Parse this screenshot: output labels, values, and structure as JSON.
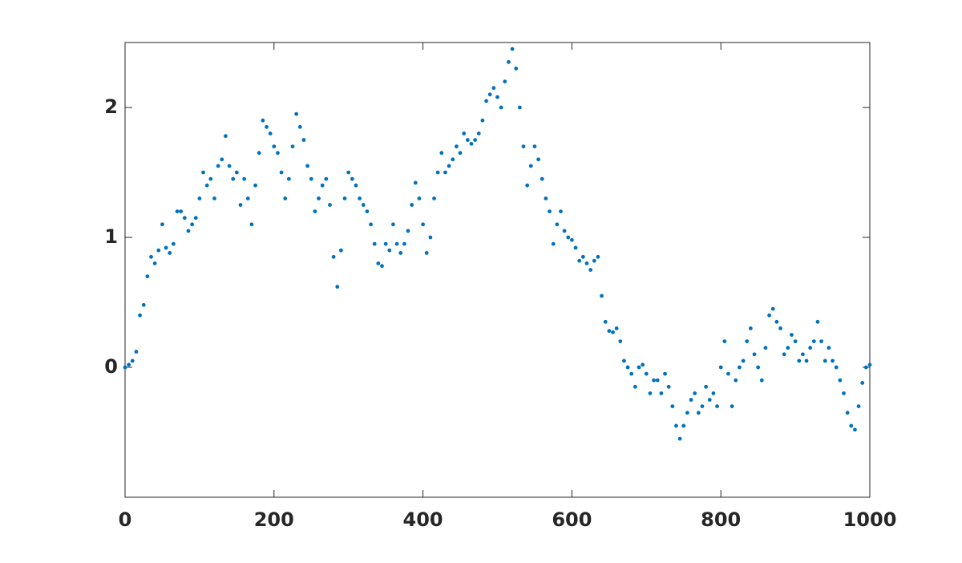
{
  "chart_data": {
    "type": "scatter",
    "color": "#0072bd",
    "xlim": [
      0,
      1000
    ],
    "ylim": [
      -1,
      2.5
    ],
    "xticks": [
      0,
      200,
      400,
      600,
      800,
      1000
    ],
    "yticks": [
      0,
      1,
      2
    ],
    "x": [
      0,
      5,
      10,
      15,
      20,
      25,
      30,
      35,
      40,
      45,
      50,
      55,
      60,
      65,
      70,
      75,
      80,
      85,
      90,
      95,
      100,
      105,
      110,
      115,
      120,
      125,
      130,
      135,
      140,
      145,
      150,
      155,
      160,
      165,
      170,
      175,
      180,
      185,
      190,
      195,
      200,
      205,
      210,
      215,
      220,
      225,
      230,
      235,
      240,
      245,
      250,
      255,
      260,
      265,
      270,
      275,
      280,
      285,
      290,
      295,
      300,
      305,
      310,
      315,
      320,
      325,
      330,
      335,
      340,
      345,
      350,
      355,
      360,
      365,
      370,
      375,
      380,
      385,
      390,
      395,
      400,
      405,
      410,
      415,
      420,
      425,
      430,
      435,
      440,
      445,
      450,
      455,
      460,
      465,
      470,
      475,
      480,
      485,
      490,
      495,
      500,
      505,
      510,
      515,
      520,
      525,
      530,
      535,
      540,
      545,
      550,
      555,
      560,
      565,
      570,
      575,
      580,
      585,
      590,
      595,
      600,
      605,
      610,
      615,
      620,
      625,
      630,
      635,
      640,
      645,
      650,
      655,
      660,
      665,
      670,
      675,
      680,
      685,
      690,
      695,
      700,
      705,
      710,
      715,
      720,
      725,
      730,
      735,
      740,
      745,
      750,
      755,
      760,
      765,
      770,
      775,
      780,
      785,
      790,
      795,
      800,
      805,
      810,
      815,
      820,
      825,
      830,
      835,
      840,
      845,
      850,
      855,
      860,
      865,
      870,
      875,
      880,
      885,
      890,
      895,
      900,
      905,
      910,
      915,
      920,
      925,
      930,
      935,
      940,
      945,
      950,
      955,
      960,
      965,
      970,
      975,
      980,
      985,
      990,
      995,
      1000
    ],
    "y": [
      0.0,
      0.02,
      0.05,
      0.12,
      0.4,
      0.48,
      0.7,
      0.85,
      0.8,
      0.9,
      1.1,
      0.92,
      0.88,
      0.95,
      1.2,
      1.2,
      1.15,
      1.05,
      1.1,
      1.15,
      1.3,
      1.5,
      1.4,
      1.45,
      1.3,
      1.55,
      1.6,
      1.78,
      1.55,
      1.45,
      1.5,
      1.25,
      1.45,
      1.3,
      1.1,
      1.4,
      1.65,
      1.9,
      1.85,
      1.8,
      1.7,
      1.65,
      1.5,
      1.3,
      1.45,
      1.7,
      1.95,
      1.85,
      1.75,
      1.55,
      1.45,
      1.2,
      1.3,
      1.4,
      1.45,
      1.25,
      0.85,
      0.62,
      0.9,
      1.3,
      1.5,
      1.45,
      1.4,
      1.3,
      1.25,
      1.2,
      1.1,
      0.95,
      0.8,
      0.78,
      0.95,
      0.9,
      1.1,
      0.95,
      0.88,
      0.95,
      1.05,
      1.25,
      1.42,
      1.3,
      1.1,
      0.88,
      1.0,
      1.3,
      1.5,
      1.65,
      1.5,
      1.55,
      1.6,
      1.7,
      1.65,
      1.8,
      1.75,
      1.72,
      1.75,
      1.8,
      1.9,
      2.05,
      2.1,
      2.15,
      2.08,
      2.0,
      2.2,
      2.35,
      2.45,
      2.3,
      2.0,
      1.7,
      1.4,
      1.55,
      1.7,
      1.6,
      1.45,
      1.3,
      1.2,
      0.95,
      1.1,
      1.2,
      1.05,
      1.0,
      0.98,
      0.92,
      0.82,
      0.85,
      0.8,
      0.75,
      0.82,
      0.85,
      0.55,
      0.35,
      0.28,
      0.27,
      0.3,
      0.2,
      0.05,
      0.0,
      -0.05,
      -0.15,
      0.0,
      0.02,
      -0.05,
      -0.2,
      -0.1,
      -0.1,
      -0.2,
      -0.05,
      -0.15,
      -0.3,
      -0.45,
      -0.55,
      -0.45,
      -0.35,
      -0.25,
      -0.2,
      -0.35,
      -0.3,
      -0.15,
      -0.25,
      -0.2,
      -0.3,
      0.0,
      0.2,
      -0.05,
      -0.3,
      -0.1,
      0.0,
      0.05,
      0.2,
      0.3,
      0.1,
      0.0,
      -0.1,
      0.15,
      0.4,
      0.45,
      0.35,
      0.3,
      0.1,
      0.15,
      0.25,
      0.2,
      0.05,
      0.1,
      0.05,
      0.15,
      0.2,
      0.35,
      0.2,
      0.05,
      0.15,
      0.05,
      0.0,
      -0.1,
      -0.2,
      -0.35,
      -0.45,
      -0.48,
      -0.3,
      -0.12,
      0.0,
      0.02
    ]
  }
}
